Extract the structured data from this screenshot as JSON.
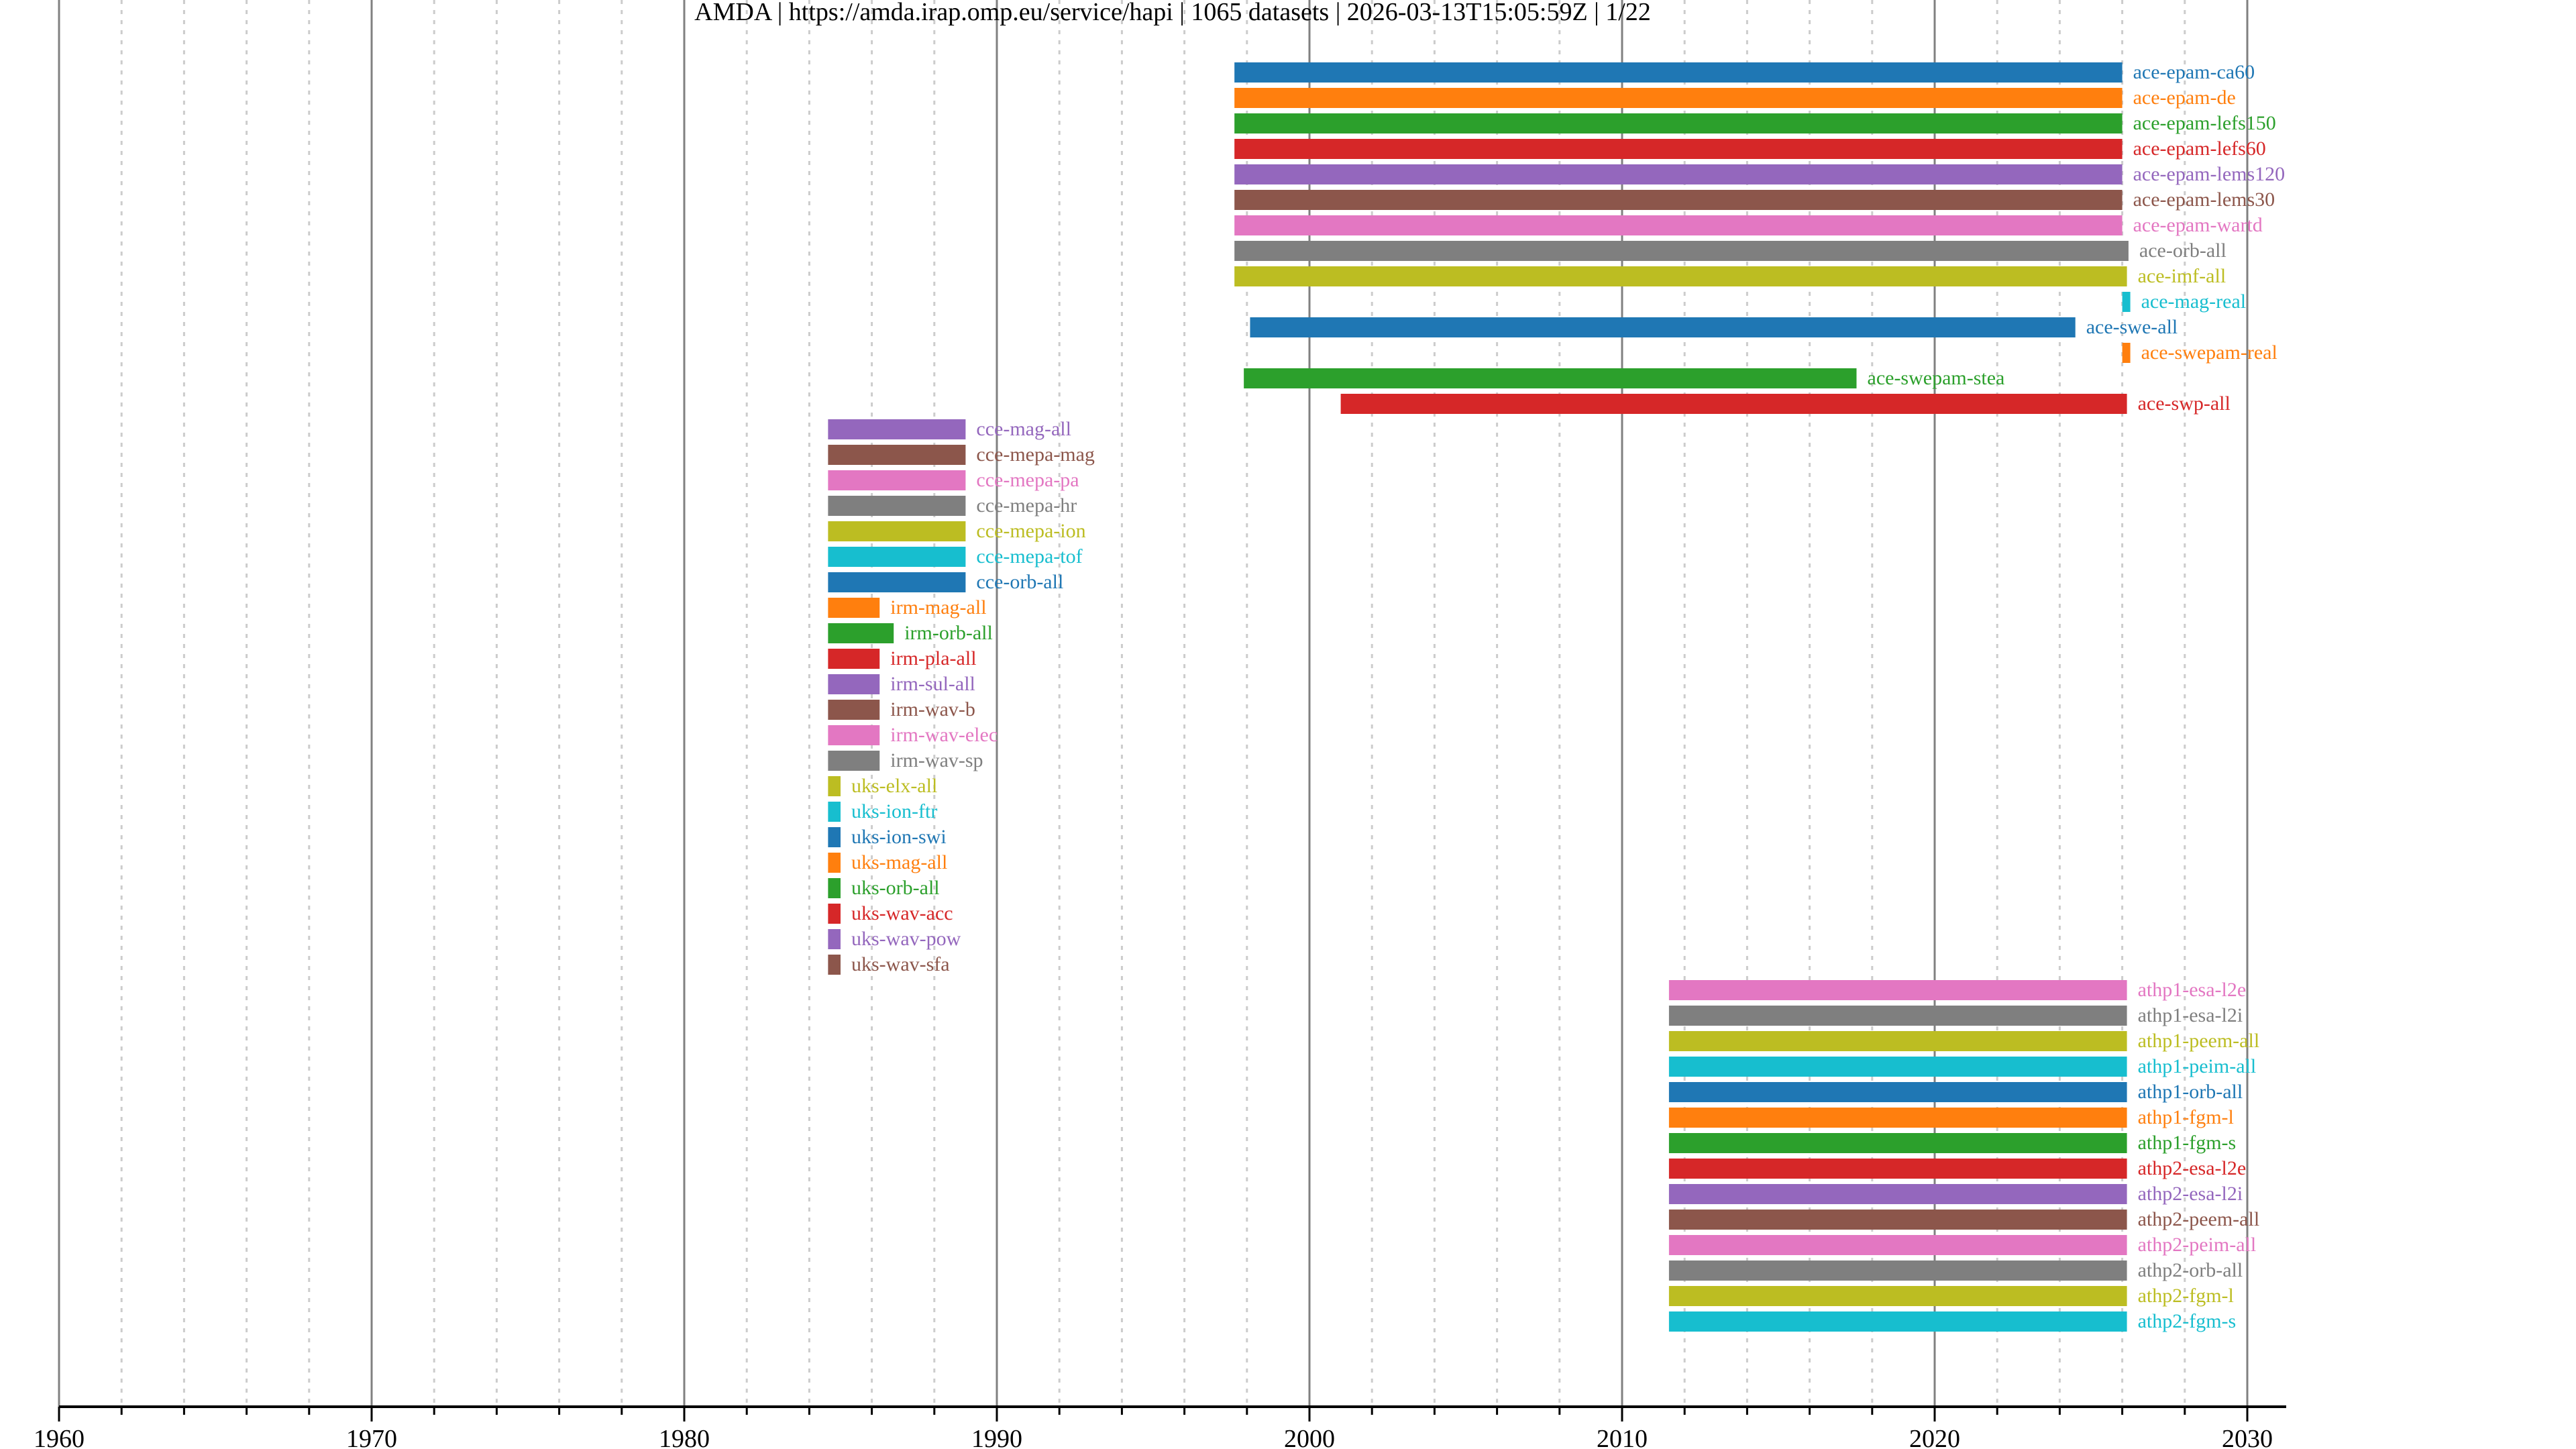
{
  "title": "AMDA | https://amda.irap.omp.eu/service/hapi | 1065 datasets | 2026-03-13T15:05:59Z | 1/22",
  "chart_data": {
    "type": "bar",
    "orientation": "horizontal-timeline",
    "title": "AMDA | https://amda.irap.omp.eu/service/hapi | 1065 datasets | 2026-03-13T15:05:59Z | 1/22",
    "xlabel": "",
    "ylabel": "",
    "xlim": [
      1960,
      2031.5
    ],
    "xticks": [
      "1960",
      "1970",
      "1980",
      "1990",
      "2000",
      "2010",
      "2020",
      "2030"
    ],
    "xtick_values": [
      1960,
      1970,
      1980,
      1990,
      2000,
      2010,
      2020,
      2030
    ],
    "minor_grid_step_years": 2,
    "grid": true,
    "palette": [
      "#1f77b4",
      "#ff7f0e",
      "#2ca02c",
      "#d62728",
      "#9467bd",
      "#8c564b",
      "#e377c2",
      "#7f7f7f",
      "#bcbd22",
      "#17becf"
    ],
    "datasets": [
      {
        "name": "ace-epam-ca60",
        "start": 1997.6,
        "end": 2026.0
      },
      {
        "name": "ace-epam-de",
        "start": 1997.6,
        "end": 2026.0
      },
      {
        "name": "ace-epam-lefs150",
        "start": 1997.6,
        "end": 2026.0
      },
      {
        "name": "ace-epam-lefs60",
        "start": 1997.6,
        "end": 2026.0
      },
      {
        "name": "ace-epam-lems120",
        "start": 1997.6,
        "end": 2026.0
      },
      {
        "name": "ace-epam-lems30",
        "start": 1997.6,
        "end": 2026.0
      },
      {
        "name": "ace-epam-wartd",
        "start": 1997.6,
        "end": 2026.0
      },
      {
        "name": "ace-orb-all",
        "start": 1997.6,
        "end": 2026.2
      },
      {
        "name": "ace-imf-all",
        "start": 1997.6,
        "end": 2026.15
      },
      {
        "name": "ace-mag-real",
        "start": 2026.0,
        "end": 2026.2
      },
      {
        "name": "ace-swe-all",
        "start": 1998.1,
        "end": 2024.5
      },
      {
        "name": "ace-swepam-real",
        "start": 2026.0,
        "end": 2026.2
      },
      {
        "name": "ace-swepam-stea",
        "start": 1997.9,
        "end": 2017.5
      },
      {
        "name": "ace-swp-all",
        "start": 2001.0,
        "end": 2026.15
      },
      {
        "name": "cce-mag-all",
        "start": 1984.6,
        "end": 1989.0
      },
      {
        "name": "cce-mepa-mag",
        "start": 1984.6,
        "end": 1989.0
      },
      {
        "name": "cce-mepa-pa",
        "start": 1984.6,
        "end": 1989.0
      },
      {
        "name": "cce-mepa-hr",
        "start": 1984.6,
        "end": 1989.0
      },
      {
        "name": "cce-mepa-ion",
        "start": 1984.6,
        "end": 1989.0
      },
      {
        "name": "cce-mepa-tof",
        "start": 1984.6,
        "end": 1989.0
      },
      {
        "name": "cce-orb-all",
        "start": 1984.6,
        "end": 1989.0
      },
      {
        "name": "irm-mag-all",
        "start": 1984.6,
        "end": 1986.25
      },
      {
        "name": "irm-orb-all",
        "start": 1984.6,
        "end": 1986.7
      },
      {
        "name": "irm-pla-all",
        "start": 1984.6,
        "end": 1986.25
      },
      {
        "name": "irm-sul-all",
        "start": 1984.6,
        "end": 1986.25
      },
      {
        "name": "irm-wav-b",
        "start": 1984.6,
        "end": 1986.25
      },
      {
        "name": "irm-wav-elec",
        "start": 1984.6,
        "end": 1986.25
      },
      {
        "name": "irm-wav-sp",
        "start": 1984.6,
        "end": 1986.25
      },
      {
        "name": "uks-elx-all",
        "start": 1984.6,
        "end": 1985.0
      },
      {
        "name": "uks-ion-ftr",
        "start": 1984.6,
        "end": 1985.0
      },
      {
        "name": "uks-ion-swi",
        "start": 1984.6,
        "end": 1985.0
      },
      {
        "name": "uks-mag-all",
        "start": 1984.6,
        "end": 1985.0
      },
      {
        "name": "uks-orb-all",
        "start": 1984.6,
        "end": 1985.0
      },
      {
        "name": "uks-wav-acc",
        "start": 1984.6,
        "end": 1985.0
      },
      {
        "name": "uks-wav-pow",
        "start": 1984.6,
        "end": 1985.0
      },
      {
        "name": "uks-wav-sfa",
        "start": 1984.6,
        "end": 1985.0
      },
      {
        "name": "athp1-esa-l2e",
        "start": 2011.5,
        "end": 2026.15
      },
      {
        "name": "athp1-esa-l2i",
        "start": 2011.5,
        "end": 2026.15
      },
      {
        "name": "athp1-peem-all",
        "start": 2011.5,
        "end": 2026.15
      },
      {
        "name": "athp1-peim-all",
        "start": 2011.5,
        "end": 2026.15
      },
      {
        "name": "athp1-orb-all",
        "start": 2011.5,
        "end": 2026.15
      },
      {
        "name": "athp1-fgm-l",
        "start": 2011.5,
        "end": 2026.15
      },
      {
        "name": "athp1-fgm-s",
        "start": 2011.5,
        "end": 2026.15
      },
      {
        "name": "athp2-esa-l2e",
        "start": 2011.5,
        "end": 2026.15
      },
      {
        "name": "athp2-esa-l2i",
        "start": 2011.5,
        "end": 2026.15
      },
      {
        "name": "athp2-peem-all",
        "start": 2011.5,
        "end": 2026.15
      },
      {
        "name": "athp2-peim-all",
        "start": 2011.5,
        "end": 2026.15
      },
      {
        "name": "athp2-orb-all",
        "start": 2011.5,
        "end": 2026.15
      },
      {
        "name": "athp2-fgm-l",
        "start": 2011.5,
        "end": 2026.15
      },
      {
        "name": "athp2-fgm-s",
        "start": 2011.5,
        "end": 2026.15
      }
    ]
  }
}
